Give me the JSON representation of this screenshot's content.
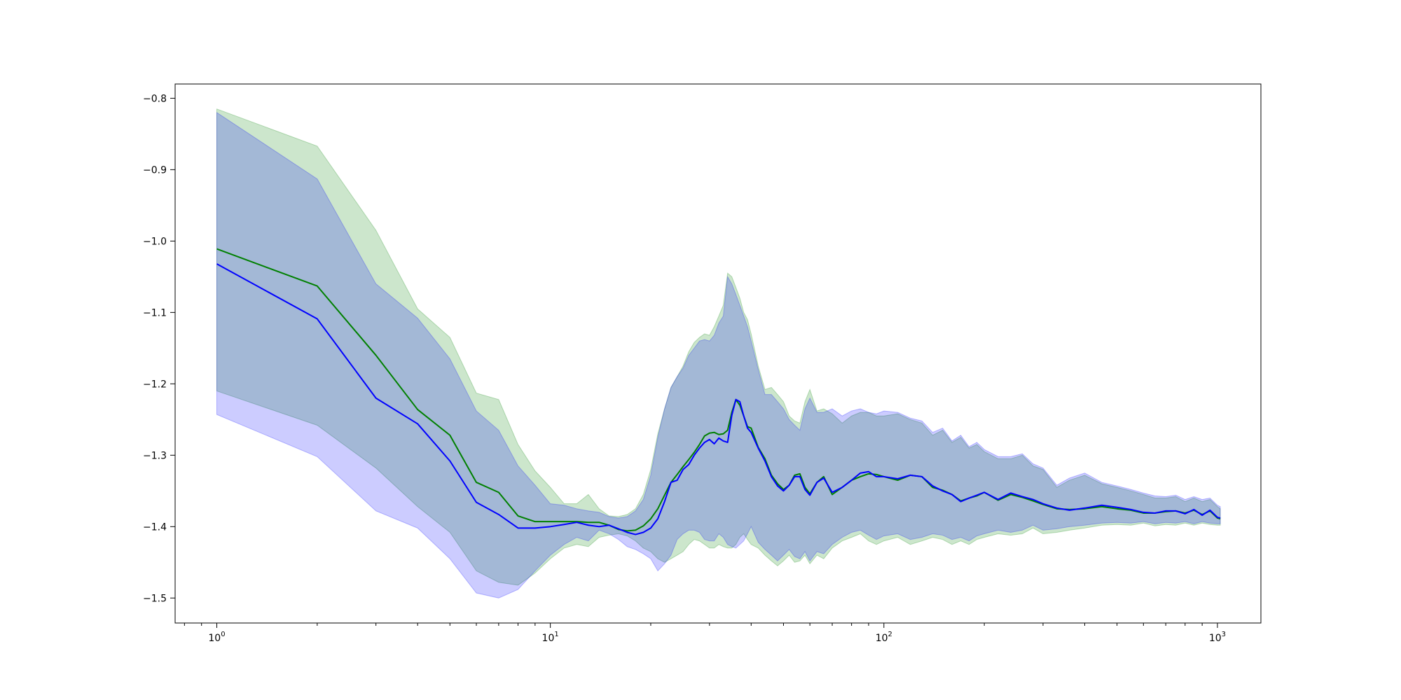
{
  "chart_data": {
    "type": "line",
    "title": "",
    "xlabel": "",
    "ylabel": "",
    "x_scale": "log",
    "xlim": [
      0.75,
      1350
    ],
    "ylim": [
      -1.535,
      -0.78
    ],
    "grid": false,
    "legend": "none",
    "x_ticks": [
      {
        "value": 1,
        "base": "10",
        "exp": "0"
      },
      {
        "value": 10,
        "base": "10",
        "exp": "1"
      },
      {
        "value": 100,
        "base": "10",
        "exp": "2"
      },
      {
        "value": 1000,
        "base": "10",
        "exp": "3"
      }
    ],
    "y_ticks": [
      {
        "value": -0.8,
        "label": "−0.8"
      },
      {
        "value": -0.9,
        "label": "−0.9"
      },
      {
        "value": -1.0,
        "label": "−1.0"
      },
      {
        "value": -1.1,
        "label": "−1.1"
      },
      {
        "value": -1.2,
        "label": "−1.2"
      },
      {
        "value": -1.3,
        "label": "−1.3"
      },
      {
        "value": -1.4,
        "label": "−1.4"
      },
      {
        "value": -1.5,
        "label": "−1.5"
      }
    ],
    "series": [
      {
        "color": "#008000",
        "band_color": "#008000",
        "band_opacity": 0.2,
        "x": [
          1,
          2,
          3,
          4,
          5,
          6,
          7,
          8,
          9,
          10,
          11,
          12,
          13,
          14,
          15,
          16,
          17,
          18,
          19,
          20,
          21,
          22,
          23,
          24,
          25,
          26,
          27,
          28,
          29,
          30,
          31,
          32,
          33,
          34,
          35,
          36,
          37,
          38,
          39,
          40,
          42,
          44,
          46,
          48,
          50,
          52,
          54,
          56,
          58,
          60,
          63,
          66,
          70,
          75,
          80,
          85,
          90,
          95,
          100,
          110,
          120,
          130,
          140,
          150,
          160,
          170,
          180,
          190,
          200,
          220,
          240,
          260,
          280,
          300,
          330,
          360,
          400,
          450,
          500,
          550,
          600,
          650,
          700,
          750,
          800,
          850,
          900,
          950,
          1000,
          1020
        ],
        "mean": [
          -1.011,
          -1.063,
          -1.16,
          -1.236,
          -1.272,
          -1.338,
          -1.352,
          -1.385,
          -1.393,
          -1.393,
          -1.393,
          -1.393,
          -1.394,
          -1.394,
          -1.398,
          -1.404,
          -1.406,
          -1.405,
          -1.399,
          -1.389,
          -1.375,
          -1.356,
          -1.338,
          -1.327,
          -1.316,
          -1.306,
          -1.296,
          -1.285,
          -1.273,
          -1.269,
          -1.268,
          -1.271,
          -1.27,
          -1.265,
          -1.24,
          -1.222,
          -1.23,
          -1.245,
          -1.26,
          -1.262,
          -1.289,
          -1.305,
          -1.328,
          -1.34,
          -1.348,
          -1.342,
          -1.328,
          -1.326,
          -1.345,
          -1.354,
          -1.338,
          -1.33,
          -1.355,
          -1.345,
          -1.335,
          -1.33,
          -1.326,
          -1.327,
          -1.33,
          -1.335,
          -1.328,
          -1.33,
          -1.345,
          -1.349,
          -1.355,
          -1.364,
          -1.36,
          -1.357,
          -1.352,
          -1.363,
          -1.355,
          -1.359,
          -1.364,
          -1.369,
          -1.375,
          -1.376,
          -1.375,
          -1.372,
          -1.375,
          -1.377,
          -1.381,
          -1.381,
          -1.379,
          -1.378,
          -1.381,
          -1.377,
          -1.383,
          -1.378,
          -1.388,
          -1.389
        ],
        "upper": [
          -0.815,
          -0.867,
          -0.985,
          -1.095,
          -1.135,
          -1.213,
          -1.222,
          -1.285,
          -1.322,
          -1.345,
          -1.368,
          -1.368,
          -1.355,
          -1.375,
          -1.385,
          -1.386,
          -1.383,
          -1.375,
          -1.355,
          -1.32,
          -1.27,
          -1.235,
          -1.205,
          -1.19,
          -1.175,
          -1.155,
          -1.142,
          -1.135,
          -1.13,
          -1.132,
          -1.12,
          -1.105,
          -1.09,
          -1.045,
          -1.05,
          -1.065,
          -1.08,
          -1.1,
          -1.11,
          -1.13,
          -1.175,
          -1.208,
          -1.205,
          -1.215,
          -1.225,
          -1.245,
          -1.252,
          -1.255,
          -1.225,
          -1.208,
          -1.238,
          -1.235,
          -1.242,
          -1.255,
          -1.245,
          -1.24,
          -1.24,
          -1.245,
          -1.245,
          -1.242,
          -1.25,
          -1.255,
          -1.272,
          -1.265,
          -1.282,
          -1.275,
          -1.29,
          -1.285,
          -1.295,
          -1.305,
          -1.305,
          -1.3,
          -1.315,
          -1.32,
          -1.345,
          -1.335,
          -1.328,
          -1.34,
          -1.345,
          -1.35,
          -1.355,
          -1.36,
          -1.36,
          -1.358,
          -1.365,
          -1.36,
          -1.365,
          -1.362,
          -1.372,
          -1.375
        ],
        "lower": [
          -1.21,
          -1.258,
          -1.318,
          -1.372,
          -1.408,
          -1.462,
          -1.478,
          -1.482,
          -1.465,
          -1.445,
          -1.43,
          -1.425,
          -1.428,
          -1.415,
          -1.412,
          -1.41,
          -1.413,
          -1.42,
          -1.43,
          -1.435,
          -1.445,
          -1.45,
          -1.445,
          -1.44,
          -1.435,
          -1.425,
          -1.418,
          -1.42,
          -1.425,
          -1.43,
          -1.43,
          -1.425,
          -1.428,
          -1.43,
          -1.43,
          -1.425,
          -1.415,
          -1.41,
          -1.418,
          -1.425,
          -1.43,
          -1.44,
          -1.448,
          -1.455,
          -1.448,
          -1.44,
          -1.45,
          -1.448,
          -1.44,
          -1.452,
          -1.44,
          -1.445,
          -1.43,
          -1.42,
          -1.415,
          -1.41,
          -1.42,
          -1.425,
          -1.42,
          -1.415,
          -1.425,
          -1.42,
          -1.415,
          -1.418,
          -1.425,
          -1.42,
          -1.425,
          -1.418,
          -1.415,
          -1.41,
          -1.412,
          -1.41,
          -1.402,
          -1.41,
          -1.408,
          -1.405,
          -1.402,
          -1.398,
          -1.397,
          -1.398,
          -1.395,
          -1.399,
          -1.397,
          -1.398,
          -1.395,
          -1.398,
          -1.395,
          -1.397,
          -1.398,
          -1.398
        ]
      },
      {
        "color": "#0000ff",
        "band_color": "#0000ff",
        "band_opacity": 0.2,
        "x": [
          1,
          2,
          3,
          4,
          5,
          6,
          7,
          8,
          9,
          10,
          11,
          12,
          13,
          14,
          15,
          16,
          17,
          18,
          19,
          20,
          21,
          22,
          23,
          24,
          25,
          26,
          27,
          28,
          29,
          30,
          31,
          32,
          33,
          34,
          35,
          36,
          37,
          38,
          39,
          40,
          42,
          44,
          46,
          48,
          50,
          52,
          54,
          56,
          58,
          60,
          63,
          66,
          70,
          75,
          80,
          85,
          90,
          95,
          100,
          110,
          120,
          130,
          140,
          150,
          160,
          170,
          180,
          190,
          200,
          220,
          240,
          260,
          280,
          300,
          330,
          360,
          400,
          450,
          500,
          550,
          600,
          650,
          700,
          750,
          800,
          850,
          900,
          950,
          1000,
          1020
        ],
        "mean": [
          -1.032,
          -1.109,
          -1.22,
          -1.256,
          -1.308,
          -1.366,
          -1.383,
          -1.402,
          -1.402,
          -1.4,
          -1.397,
          -1.394,
          -1.398,
          -1.4,
          -1.398,
          -1.403,
          -1.408,
          -1.411,
          -1.408,
          -1.402,
          -1.389,
          -1.365,
          -1.338,
          -1.335,
          -1.32,
          -1.313,
          -1.3,
          -1.29,
          -1.282,
          -1.278,
          -1.284,
          -1.276,
          -1.28,
          -1.282,
          -1.244,
          -1.222,
          -1.225,
          -1.245,
          -1.262,
          -1.268,
          -1.29,
          -1.308,
          -1.33,
          -1.343,
          -1.35,
          -1.342,
          -1.33,
          -1.33,
          -1.348,
          -1.356,
          -1.338,
          -1.332,
          -1.352,
          -1.345,
          -1.335,
          -1.325,
          -1.323,
          -1.33,
          -1.33,
          -1.333,
          -1.328,
          -1.33,
          -1.343,
          -1.35,
          -1.355,
          -1.365,
          -1.36,
          -1.356,
          -1.352,
          -1.362,
          -1.353,
          -1.358,
          -1.362,
          -1.368,
          -1.374,
          -1.377,
          -1.374,
          -1.37,
          -1.373,
          -1.376,
          -1.38,
          -1.381,
          -1.378,
          -1.378,
          -1.382,
          -1.376,
          -1.384,
          -1.377,
          -1.387,
          -1.388
        ],
        "upper": [
          -0.82,
          -0.913,
          -1.06,
          -1.108,
          -1.165,
          -1.238,
          -1.265,
          -1.315,
          -1.342,
          -1.368,
          -1.37,
          -1.375,
          -1.378,
          -1.38,
          -1.386,
          -1.388,
          -1.386,
          -1.378,
          -1.362,
          -1.328,
          -1.275,
          -1.235,
          -1.205,
          -1.19,
          -1.178,
          -1.16,
          -1.15,
          -1.14,
          -1.138,
          -1.14,
          -1.132,
          -1.115,
          -1.105,
          -1.05,
          -1.06,
          -1.075,
          -1.09,
          -1.105,
          -1.12,
          -1.14,
          -1.18,
          -1.215,
          -1.215,
          -1.225,
          -1.235,
          -1.25,
          -1.258,
          -1.265,
          -1.235,
          -1.22,
          -1.24,
          -1.24,
          -1.235,
          -1.245,
          -1.238,
          -1.235,
          -1.24,
          -1.242,
          -1.238,
          -1.24,
          -1.248,
          -1.252,
          -1.268,
          -1.262,
          -1.28,
          -1.272,
          -1.288,
          -1.282,
          -1.292,
          -1.302,
          -1.302,
          -1.298,
          -1.312,
          -1.318,
          -1.342,
          -1.332,
          -1.325,
          -1.338,
          -1.343,
          -1.348,
          -1.353,
          -1.357,
          -1.358,
          -1.356,
          -1.362,
          -1.358,
          -1.362,
          -1.36,
          -1.37,
          -1.372
        ],
        "lower": [
          -1.243,
          -1.302,
          -1.378,
          -1.402,
          -1.445,
          -1.493,
          -1.5,
          -1.488,
          -1.462,
          -1.44,
          -1.425,
          -1.415,
          -1.42,
          -1.405,
          -1.41,
          -1.418,
          -1.428,
          -1.432,
          -1.438,
          -1.445,
          -1.462,
          -1.452,
          -1.44,
          -1.418,
          -1.41,
          -1.405,
          -1.405,
          -1.408,
          -1.418,
          -1.42,
          -1.42,
          -1.41,
          -1.415,
          -1.425,
          -1.428,
          -1.43,
          -1.425,
          -1.42,
          -1.41,
          -1.4,
          -1.422,
          -1.432,
          -1.44,
          -1.448,
          -1.44,
          -1.432,
          -1.442,
          -1.445,
          -1.435,
          -1.448,
          -1.435,
          -1.438,
          -1.425,
          -1.415,
          -1.408,
          -1.405,
          -1.412,
          -1.418,
          -1.413,
          -1.41,
          -1.418,
          -1.415,
          -1.41,
          -1.412,
          -1.418,
          -1.415,
          -1.42,
          -1.413,
          -1.41,
          -1.405,
          -1.408,
          -1.405,
          -1.398,
          -1.405,
          -1.403,
          -1.4,
          -1.398,
          -1.395,
          -1.394,
          -1.395,
          -1.393,
          -1.396,
          -1.394,
          -1.395,
          -1.393,
          -1.396,
          -1.393,
          -1.395,
          -1.396,
          -1.396
        ]
      }
    ]
  }
}
